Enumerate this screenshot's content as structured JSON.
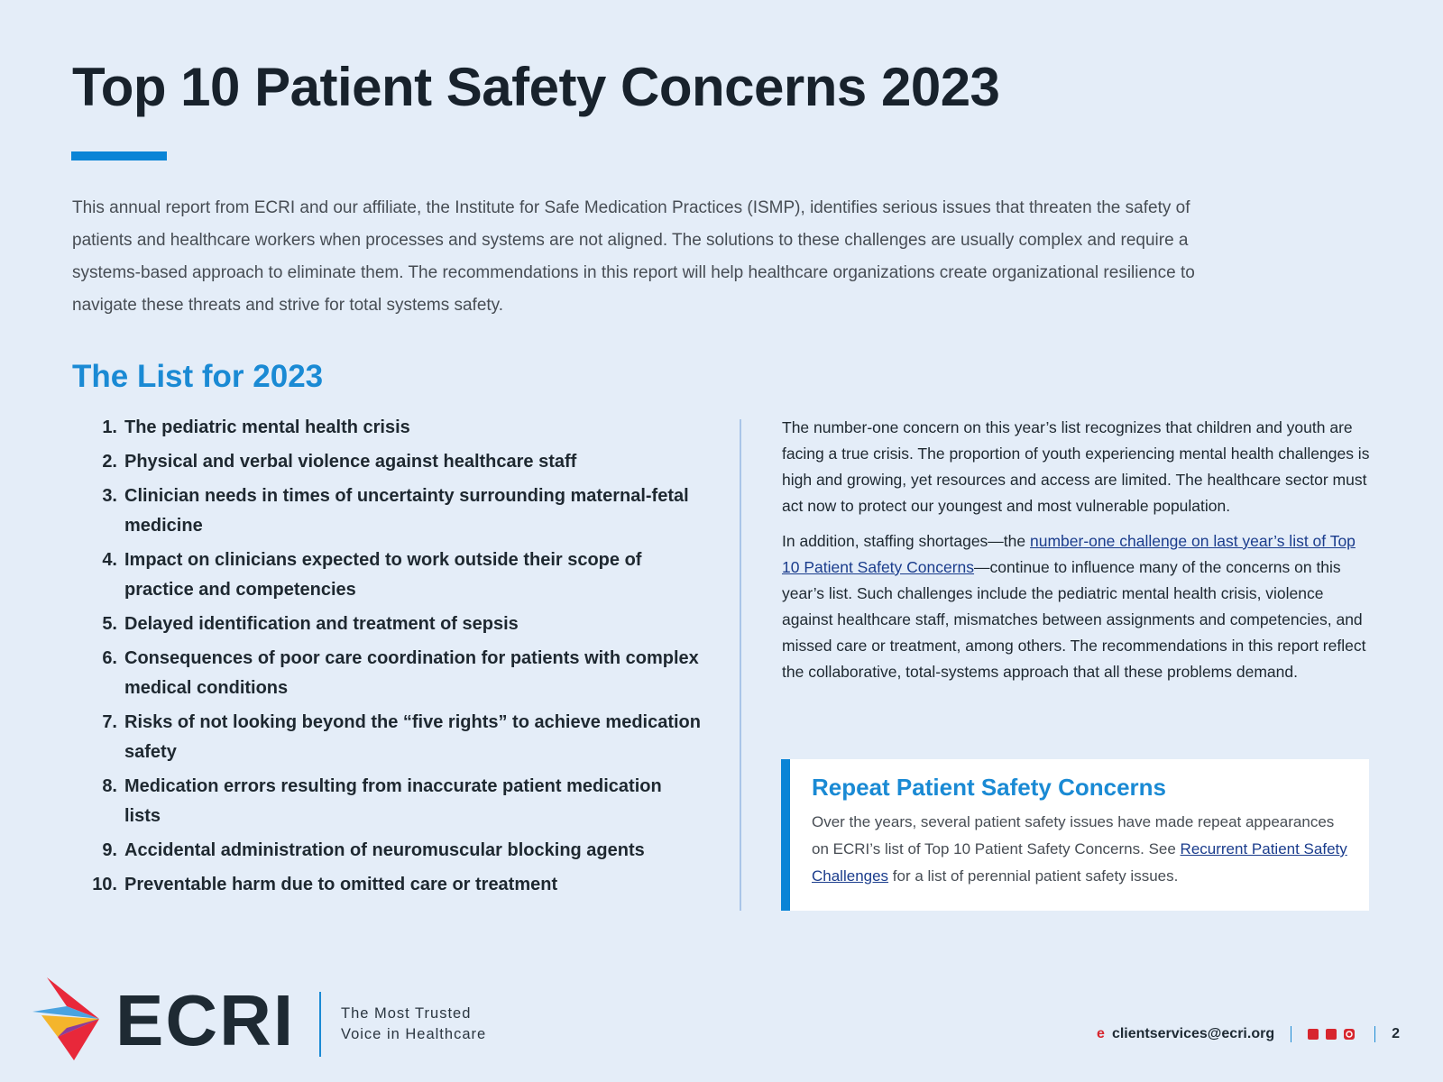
{
  "header": {
    "title": "Top 10 Patient Safety Concerns 2023"
  },
  "intro": "This annual report from ECRI and our affiliate, the Institute for Safe Medication Practices (ISMP), identifies serious issues that threaten the safety of patients and healthcare workers when processes and systems are not aligned. The solutions to these challenges are usually complex and require a systems-based approach to eliminate them. The recommendations in this report will help healthcare organizations create organizational resilience to navigate these threats and strive for total systems safety.",
  "list": {
    "heading": "The List for 2023",
    "items": [
      {
        "number": "1.",
        "text": "The pediatric mental health crisis"
      },
      {
        "number": "2.",
        "text": "Physical and verbal violence against healthcare staff"
      },
      {
        "number": "3.",
        "text": "Clinician needs in times of uncertainty surrounding maternal-fetal medicine"
      },
      {
        "number": "4.",
        "text": "Impact on clinicians expected to work outside their scope of practice and competencies"
      },
      {
        "number": "5.",
        "text": "Delayed identification and treatment of sepsis"
      },
      {
        "number": "6.",
        "text": "Consequences of poor care coordination for patients with complex medical conditions"
      },
      {
        "number": "7.",
        "text": "Risks of not looking beyond the “five rights” to achieve medication safety"
      },
      {
        "number": "8.",
        "text": "Medication errors resulting from inaccurate patient medication lists"
      },
      {
        "number": "9.",
        "text": "Accidental administration of neuromuscular blocking agents"
      },
      {
        "number": "10.",
        "text": "Preventable harm due to omitted care or treatment"
      }
    ]
  },
  "body": {
    "paragraph_1": "The number-one concern on this year’s list recognizes that children and youth are facing a true crisis. The proportion of youth experiencing mental health challenges is high and growing, yet resources and access are limited. The healthcare sector must act now to protect our youngest and most vulnerable population.",
    "paragraph_2": {
      "before": "In addition, staffing shortages—the ",
      "link": "number-one challenge on last year’s list of Top 10 Patient Safety Concerns",
      "after": "—continue to influence many of the concerns on this year’s list. Such challenges include the pediatric mental health crisis, violence against healthcare staff, mismatches between assignments and competencies, and missed care or treatment, among others. The recommendations in this report reflect the collaborative, total-systems approach that all these problems demand."
    }
  },
  "callout": {
    "title": "Repeat Patient Safety Concerns",
    "before": "Over the years, several patient safety issues have made repeat appearances on ECRI’s list of Top 10 Patient Safety Concerns. See ",
    "link": "Recurrent Patient Safety Challenges",
    "after": " for a list of perennial patient safety issues."
  },
  "footer": {
    "logo": "ECRI",
    "tagline": [
      "The Most Trusted",
      "Voice in Healthcare"
    ],
    "email_icon": "e",
    "email": "clientservices@ecri.org",
    "page": "2"
  }
}
